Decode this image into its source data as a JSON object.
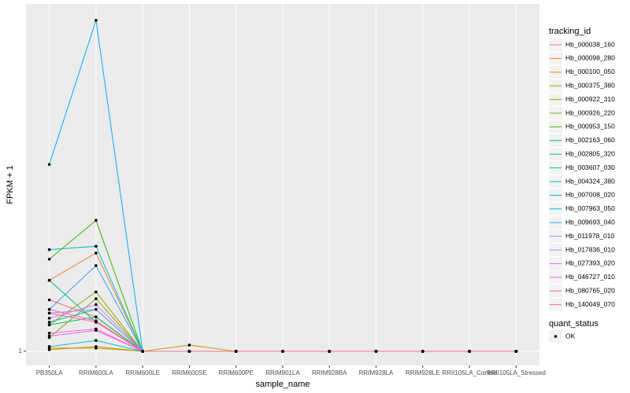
{
  "chart_data": {
    "type": "line",
    "x_label": "sample_name",
    "y_label": "FPKM + 1",
    "categories": [
      "PB350LA",
      "RRIM600LA",
      "RRIM600LE",
      "RRIM600SE",
      "RRIM600PE",
      "RRIM901LA",
      "RRIM928BA",
      "RRIM928LA",
      "RRIM928LE",
      "RRII105LA_Control",
      "RRII105LA_Stressed"
    ],
    "y_scale": "log",
    "ylim": [
      0.915,
      8.8
    ],
    "yticks": [
      1
    ],
    "grid": true,
    "legend_position": "right",
    "legend_title": "tracking_id",
    "point_legend": {
      "title": "quant_status",
      "labels": [
        "OK"
      ],
      "color": "#000000"
    },
    "series": [
      {
        "name": "Hb_000038_160",
        "color": "#F8766D",
        "values": [
          1.38,
          1.24,
          1,
          1,
          1,
          1,
          1,
          1,
          1,
          1,
          1
        ]
      },
      {
        "name": "Hb_000098_280",
        "color": "#EA8331",
        "values": [
          1.56,
          1.85,
          1,
          1,
          1,
          1,
          1,
          1,
          1,
          1,
          1
        ]
      },
      {
        "name": "Hb_000100_050",
        "color": "#D89000",
        "values": [
          1.02,
          1.02,
          1,
          1,
          1,
          1,
          1,
          1,
          1,
          1,
          1
        ]
      },
      {
        "name": "Hb_000375_380",
        "color": "#C09B00",
        "values": [
          1.01,
          1.03,
          1,
          1.04,
          1,
          1,
          1,
          1,
          1,
          1,
          1
        ]
      },
      {
        "name": "Hb_000922_310",
        "color": "#A3A500",
        "values": [
          1.18,
          1.45,
          1,
          1,
          1,
          1,
          1,
          1,
          1,
          1,
          1
        ]
      },
      {
        "name": "Hb_000926_220",
        "color": "#7CAE00",
        "values": [
          1.09,
          1.39,
          1,
          1,
          1,
          1,
          1,
          1,
          1,
          1,
          1
        ]
      },
      {
        "name": "Hb_000953_150",
        "color": "#39B600",
        "values": [
          1.78,
          2.27,
          1,
          1,
          1,
          1,
          1,
          1,
          1,
          1,
          1
        ]
      },
      {
        "name": "Hb_002163_060",
        "color": "#00BB4E",
        "values": [
          1.18,
          1.24,
          1,
          1,
          1,
          1,
          1,
          1,
          1,
          1,
          1
        ]
      },
      {
        "name": "Hb_002805_320",
        "color": "#00BF7D",
        "values": [
          1.56,
          1.2,
          1,
          1,
          1,
          1,
          1,
          1,
          1,
          1,
          1
        ]
      },
      {
        "name": "Hb_003607_030",
        "color": "#00C1A3",
        "values": [
          1.2,
          1.3,
          1,
          1,
          1,
          1,
          1,
          1,
          1,
          1,
          1
        ]
      },
      {
        "name": "Hb_004324_380",
        "color": "#00BFC4",
        "values": [
          1.89,
          1.93,
          1,
          1,
          1,
          1,
          1,
          1,
          1,
          1,
          1
        ]
      },
      {
        "name": "Hb_007008_020",
        "color": "#00BAE0",
        "values": [
          1.03,
          1.07,
          1,
          1,
          1,
          1,
          1,
          1,
          1,
          1,
          1
        ]
      },
      {
        "name": "Hb_007963_050",
        "color": "#00B0F6",
        "values": [
          3.22,
          7.94,
          1,
          1,
          1,
          1,
          1,
          1,
          1,
          1,
          1
        ]
      },
      {
        "name": "Hb_009693_040",
        "color": "#35A2FF",
        "values": [
          1.3,
          1.71,
          1,
          1,
          1,
          1,
          1,
          1,
          1,
          1,
          1
        ]
      },
      {
        "name": "Hb_011978_010",
        "color": "#9590FF",
        "values": [
          1.27,
          1.3,
          1,
          1,
          1,
          1,
          1,
          1,
          1,
          1,
          1
        ]
      },
      {
        "name": "Hb_017836_010",
        "color": "#C77CFF",
        "values": [
          1.23,
          1.34,
          1,
          1,
          1,
          1,
          1,
          1,
          1,
          1,
          1
        ]
      },
      {
        "name": "Hb_027393_020",
        "color": "#E76BF3",
        "values": [
          1.1,
          1.14,
          1,
          1,
          1,
          1,
          1,
          1,
          1,
          1,
          1
        ]
      },
      {
        "name": "Hb_046727_010",
        "color": "#FA62DB",
        "values": [
          1.12,
          1.15,
          1,
          1,
          1,
          1,
          1,
          1,
          1,
          1,
          1
        ]
      },
      {
        "name": "Hb_080765_020",
        "color": "#FF62BC",
        "values": [
          1.3,
          1.21,
          1,
          1,
          1,
          1,
          1,
          1,
          1,
          1,
          1
        ]
      },
      {
        "name": "Hb_140049_070",
        "color": "#FF6C91",
        "values": [
          1.27,
          1.2,
          1,
          1,
          1,
          1,
          1,
          1,
          1,
          1,
          1
        ]
      }
    ]
  }
}
